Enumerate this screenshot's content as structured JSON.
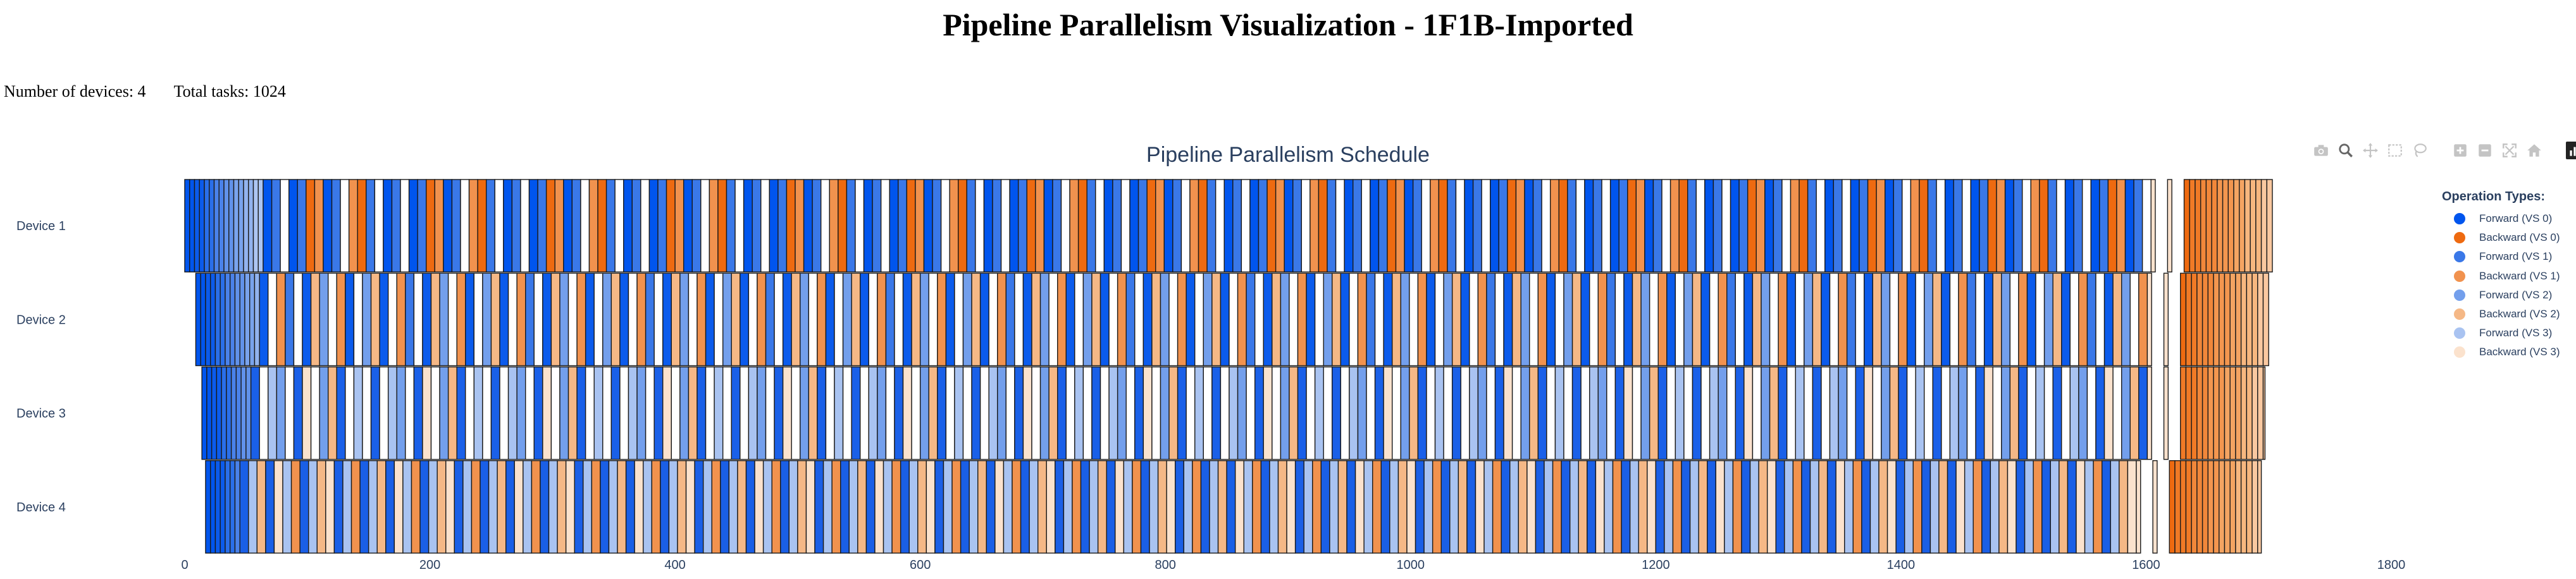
{
  "page": {
    "title": "Pipeline Parallelism Visualization - 1F1B-Imported",
    "num_devices_text": "Number of devices: 4",
    "total_tasks_text": "Total tasks: 1024"
  },
  "chart_data": {
    "type": "gantt",
    "title": "Pipeline Parallelism Schedule",
    "xlim": [
      0,
      1800
    ],
    "x_ticks": [
      0,
      200,
      400,
      600,
      800,
      1000,
      1200,
      1400,
      1600,
      1800
    ],
    "devices": [
      "Device 1",
      "Device 2",
      "Device 3",
      "Device 4"
    ],
    "legend_title": "Operation Types:",
    "legend_position": "top-right",
    "operation_types": [
      {
        "name": "Forward (VS 0)",
        "color": "#0055ee"
      },
      {
        "name": "Backward (VS 0)",
        "color": "#ee6a10"
      },
      {
        "name": "Forward (VS 1)",
        "color": "#3a78e8"
      },
      {
        "name": "Backward (VS 1)",
        "color": "#f1924e"
      },
      {
        "name": "Forward (VS 2)",
        "color": "#739fec"
      },
      {
        "name": "Backward (VS 2)",
        "color": "#f5b886"
      },
      {
        "name": "Forward (VS 3)",
        "color": "#a9c3f1"
      },
      {
        "name": "Backward (VS 3)",
        "color": "#fbe2cd"
      }
    ],
    "schedule": {
      "forward_duration": 3.5,
      "backward_duration": 7,
      "device_offsets": [
        0,
        9,
        14,
        17
      ],
      "schedule_end": 1703,
      "ramp_colors": [
        "#0055ee",
        "#0b5bec",
        "#2a6fea",
        "#4a82ea",
        "#6192ea",
        "#79a3ed",
        "#92b3ef",
        "#acc5f2"
      ],
      "tail_colors": [
        "#ee6a10",
        "#f07a26",
        "#f1873a",
        "#f3964f",
        "#f4a462",
        "#f7b77f",
        "#f9c8a0"
      ],
      "device_patterns": [
        [
          "#0055ee",
          "#3a78e8",
          "#ffffff",
          "#0055ee",
          "#3a78e8",
          "#ee6a10",
          "#f1924e",
          "#0055ee",
          "#3a78e8",
          "#ffffff",
          "#f1924e",
          "#ee6a10",
          "#3a78e8",
          "#ffffff"
        ],
        [
          "#0b5bec",
          "#ffffff",
          "#f1924e",
          "#3a78e8",
          "#ffffff",
          "#0b5bec",
          "#f5b886",
          "#739fec",
          "#ffffff",
          "#f1924e",
          "#0b5bec",
          "#ffffff",
          "#739fec",
          "#f5b886"
        ],
        [
          "#1a60e8",
          "#ffffff",
          "#a9c3f1",
          "#739fec",
          "#ffffff",
          "#1a60e8",
          "#fbe2cd",
          "#ffffff",
          "#739fec",
          "#f5b886",
          "#1a60e8",
          "#ffffff",
          "#a9c3f1",
          "#ffffff"
        ],
        [
          "#1a5fe6",
          "#a9c3f1",
          "#f5b886",
          "#1a5fe6",
          "#fbe2cd",
          "#a9c3f1",
          "#f1924e",
          "#1a5fe6",
          "#a9c3f1",
          "#f5b886",
          "#fbe2cd",
          "#1a5fe6",
          "#a9c3f1",
          "#f1924e"
        ]
      ]
    }
  },
  "modebar": {
    "buttons": [
      "camera-icon",
      "zoom-icon",
      "pan-icon",
      "box-select-icon",
      "lasso-icon",
      "zoom-in-icon",
      "zoom-out-icon",
      "autoscale-icon",
      "reset-axes-icon",
      "plotly-logo-icon"
    ]
  }
}
